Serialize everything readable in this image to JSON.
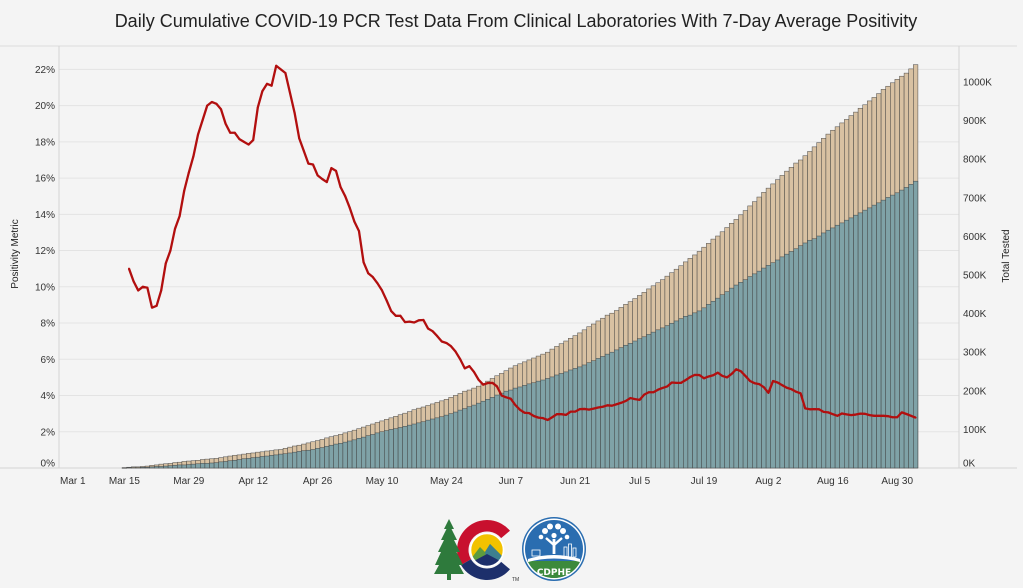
{
  "chart_data": {
    "type": "bar",
    "overlay_type": "line",
    "title": "Daily Cumulative COVID-19 PCR Test Data From Clinical Laboratories With 7-Day Average Positivity",
    "xlabel": "",
    "ylabel_left": "Positivity Metric",
    "ylabel_right": "Total Tested",
    "ylim_left": [
      0,
      23.3
    ],
    "ylim_right_thousands": [
      0,
      1093
    ],
    "grid": true,
    "legend": "none",
    "x_tick_labels": [
      "Mar 1",
      "Mar 15",
      "Mar 29",
      "Apr 12",
      "Apr 26",
      "May 10",
      "May 24",
      "Jun 7",
      "Jun 21",
      "Jul 5",
      "Jul 19",
      "Aug 2",
      "Aug 16",
      "Aug 30"
    ],
    "y_left_tick_values": [
      0,
      2,
      4,
      6,
      8,
      10,
      12,
      14,
      16,
      18,
      20,
      22
    ],
    "y_left_tick_labels": [
      "0%",
      "2%",
      "4%",
      "6%",
      "8%",
      "10%",
      "12%",
      "14%",
      "16%",
      "18%",
      "20%",
      "22%"
    ],
    "y_right_tick_values": [
      0,
      100,
      200,
      300,
      400,
      500,
      600,
      700,
      800,
      900,
      1000
    ],
    "y_right_tick_labels": [
      "0K",
      "100K",
      "200K",
      "300K",
      "400K",
      "500K",
      "600K",
      "700K",
      "800K",
      "900K",
      "1000K"
    ],
    "dates": [
      "Mar 15",
      "Mar 16",
      "Mar 17",
      "Mar 18",
      "Mar 19",
      "Mar 20",
      "Mar 21",
      "Mar 22",
      "Mar 23",
      "Mar 24",
      "Mar 25",
      "Mar 26",
      "Mar 27",
      "Mar 28",
      "Mar 29",
      "Mar 30",
      "Mar 31",
      "Apr 1",
      "Apr 2",
      "Apr 3",
      "Apr 4",
      "Apr 5",
      "Apr 6",
      "Apr 7",
      "Apr 8",
      "Apr 9",
      "Apr 10",
      "Apr 11",
      "Apr 12",
      "Apr 13",
      "Apr 14",
      "Apr 15",
      "Apr 16",
      "Apr 17",
      "Apr 18",
      "Apr 19",
      "Apr 20",
      "Apr 21",
      "Apr 22",
      "Apr 23",
      "Apr 24",
      "Apr 25",
      "Apr 26",
      "Apr 27",
      "Apr 28",
      "Apr 29",
      "Apr 30",
      "May 1",
      "May 2",
      "May 3",
      "May 4",
      "May 5",
      "May 6",
      "May 7",
      "May 8",
      "May 9",
      "May 10",
      "May 11",
      "May 12",
      "May 13",
      "May 14",
      "May 15",
      "May 16",
      "May 17",
      "May 18",
      "May 19",
      "May 20",
      "May 21",
      "May 22",
      "May 23",
      "May 24",
      "May 25",
      "May 26",
      "May 27",
      "May 28",
      "May 29",
      "May 30",
      "May 31",
      "Jun 1",
      "Jun 2",
      "Jun 3",
      "Jun 4",
      "Jun 5",
      "Jun 6",
      "Jun 7",
      "Jun 8",
      "Jun 9",
      "Jun 10",
      "Jun 11",
      "Jun 12",
      "Jun 13",
      "Jun 14",
      "Jun 15",
      "Jun 16",
      "Jun 17",
      "Jun 18",
      "Jun 19",
      "Jun 20",
      "Jun 21",
      "Jun 22",
      "Jun 23",
      "Jun 24",
      "Jun 25",
      "Jun 26",
      "Jun 27",
      "Jun 28",
      "Jun 29",
      "Jun 30",
      "Jul 1",
      "Jul 2",
      "Jul 3",
      "Jul 4",
      "Jul 5",
      "Jul 6",
      "Jul 7",
      "Jul 8",
      "Jul 9",
      "Jul 10",
      "Jul 11",
      "Jul 12",
      "Jul 13",
      "Jul 14",
      "Jul 15",
      "Jul 16",
      "Jul 17",
      "Jul 18",
      "Jul 19",
      "Jul 20",
      "Jul 21",
      "Jul 22",
      "Jul 23",
      "Jul 24",
      "Jul 25",
      "Jul 26",
      "Jul 27",
      "Jul 28",
      "Jul 29",
      "Jul 30",
      "Jul 31",
      "Aug 1",
      "Aug 2",
      "Aug 3",
      "Aug 4",
      "Aug 5",
      "Aug 6",
      "Aug 7",
      "Aug 8",
      "Aug 9",
      "Aug 10",
      "Aug 11",
      "Aug 12",
      "Aug 13",
      "Aug 14",
      "Aug 15",
      "Aug 16",
      "Aug 17",
      "Aug 18",
      "Aug 19",
      "Aug 20",
      "Aug 21",
      "Aug 22",
      "Aug 23",
      "Aug 24",
      "Aug 25",
      "Aug 26",
      "Aug 27",
      "Aug 28",
      "Aug 29",
      "Aug 30",
      "Aug 31",
      "Sep 1",
      "Sep 2",
      "Sep 3"
    ],
    "series": [
      {
        "name": "tan bars (upper stack)",
        "kind": "bar",
        "axis": "right",
        "unit": "thousands tested",
        "color": "#d8c1a2",
        "values": [
          1,
          2,
          3,
          3,
          4,
          5,
          7,
          8,
          10,
          11,
          12,
          14,
          15,
          17,
          18,
          19,
          20,
          22,
          23,
          24,
          25,
          27,
          29,
          31,
          33,
          34,
          36,
          38,
          39,
          41,
          42,
          44,
          45,
          47,
          48,
          51,
          54,
          57,
          59,
          62,
          65,
          68,
          71,
          74,
          78,
          81,
          84,
          87,
          91,
          94,
          98,
          102,
          106,
          110,
          114,
          118,
          122,
          126,
          130,
          134,
          138,
          142,
          146,
          151,
          155,
          158,
          162,
          166,
          170,
          174,
          178,
          183,
          188,
          193,
          199,
          202,
          207,
          212,
          219,
          225,
          232,
          239,
          245,
          252,
          259,
          265,
          270,
          275,
          280,
          285,
          290,
          295,
          300,
          308,
          315,
          322,
          329,
          336,
          343,
          350,
          358,
          366,
          373,
          381,
          388,
          396,
          401,
          408,
          416,
          424,
          431,
          439,
          447,
          455,
          464,
          472,
          480,
          488,
          497,
          506,
          515,
          524,
          534,
          543,
          552,
          561,
          572,
          582,
          593,
          601,
          612,
          623,
          634,
          644,
          656,
          667,
          679,
          690,
          702,
          714,
          725,
          736,
          747,
          758,
          769,
          779,
          790,
          798,
          809,
          820,
          832,
          843,
          854,
          865,
          875,
          884,
          894,
          903,
          913,
          922,
          932,
          941,
          951,
          960,
          970,
          981,
          989,
          998,
          1007,
          1015,
          1023,
          1034,
          1045
        ]
      },
      {
        "name": "teal bars (lower stack)",
        "kind": "bar",
        "axis": "right",
        "unit": "thousands tested",
        "color": "#7fa2a7",
        "values": [
          0,
          1,
          1,
          1,
          2,
          2,
          3,
          4,
          4,
          5,
          6,
          7,
          8,
          8,
          9,
          10,
          11,
          12,
          12,
          13,
          14,
          16,
          17,
          19,
          20,
          22,
          24,
          25,
          27,
          28,
          30,
          31,
          33,
          34,
          36,
          37,
          39,
          41,
          43,
          45,
          46,
          48,
          51,
          53,
          56,
          59,
          62,
          64,
          67,
          70,
          73,
          77,
          80,
          84,
          87,
          91,
          94,
          97,
          100,
          102,
          105,
          108,
          111,
          114,
          117,
          120,
          124,
          127,
          130,
          133,
          137,
          141,
          145,
          150,
          154,
          159,
          163,
          168,
          173,
          178,
          183,
          189,
          194,
          199,
          202,
          207,
          210,
          214,
          218,
          221,
          225,
          228,
          232,
          236,
          241,
          245,
          249,
          254,
          258,
          262,
          267,
          273,
          278,
          284,
          289,
          295,
          300,
          306,
          312,
          318,
          323,
          329,
          335,
          340,
          346,
          352,
          358,
          363,
          369,
          375,
          381,
          387,
          393,
          396,
          402,
          407,
          415,
          424,
          432,
          440,
          449,
          457,
          466,
          474,
          481,
          488,
          496,
          503,
          510,
          518,
          525,
          532,
          539,
          547,
          554,
          561,
          568,
          576,
          583,
          590,
          594,
          601,
          609,
          616,
          622,
          629,
          635,
          642,
          648,
          655,
          661,
          668,
          674,
          681,
          687,
          694,
          701,
          707,
          713,
          720,
          727,
          735,
          743
        ]
      },
      {
        "name": "7-Day Average Positivity",
        "kind": "line",
        "axis": "left",
        "unit": "%",
        "color": "#b20f0f",
        "values": [
          null,
          11.0,
          10.3,
          9.8,
          10.0,
          9.95,
          8.85,
          8.95,
          9.8,
          11.3,
          12.0,
          13.2,
          13.9,
          15.3,
          16.3,
          17.2,
          18.4,
          19.2,
          20.0,
          20.2,
          20.1,
          19.8,
          19.0,
          18.5,
          18.5,
          18.15,
          18.0,
          17.85,
          18.1,
          19.9,
          20.8,
          21.2,
          21.1,
          22.2,
          22.0,
          21.8,
          20.7,
          19.6,
          18.2,
          17.5,
          16.8,
          16.75,
          16.15,
          15.95,
          15.78,
          16.55,
          16.4,
          15.5,
          15.0,
          14.35,
          13.6,
          13.07,
          11.35,
          10.75,
          10.54,
          10.2,
          9.8,
          9.25,
          8.66,
          8.4,
          8.4,
          8.05,
          8.08,
          8.03,
          8.15,
          8.17,
          7.7,
          7.55,
          7.28,
          6.98,
          6.9,
          6.72,
          6.42,
          6.0,
          5.5,
          5.62,
          5.3,
          4.87,
          4.6,
          4.69,
          4.7,
          4.5,
          4.0,
          3.9,
          3.82,
          3.47,
          3.21,
          3.05,
          3.03,
          2.87,
          2.78,
          2.75,
          2.65,
          2.8,
          2.97,
          2.97,
          2.93,
          3.11,
          3.11,
          3.25,
          3.26,
          3.22,
          3.28,
          3.34,
          3.38,
          3.46,
          3.44,
          3.52,
          3.6,
          3.7,
          3.86,
          3.8,
          3.76,
          4.05,
          4.18,
          4.18,
          4.32,
          4.42,
          4.5,
          4.72,
          4.7,
          4.7,
          4.85,
          5.02,
          5.14,
          5.13,
          4.95,
          5.05,
          5.12,
          5.26,
          5.08,
          5.0,
          5.19,
          5.45,
          5.34,
          5.08,
          4.8,
          4.68,
          4.63,
          4.46,
          4.15,
          4.8,
          4.72,
          4.57,
          4.43,
          4.35,
          4.21,
          4.12,
          3.29,
          3.24,
          3.25,
          3.24,
          3.1,
          3.07,
          2.97,
          2.88,
          3.01,
          2.96,
          2.92,
          2.95,
          3.0,
          2.99,
          2.92,
          2.88,
          2.88,
          2.88,
          2.86,
          2.8,
          2.8,
          3.07,
          2.98,
          2.88,
          2.78
        ]
      }
    ]
  },
  "logos": {
    "colorado_icon": "colorado-state-logo",
    "cdphe_icon": "cdphe-logo",
    "cdphe_text": "CDPHE",
    "trademark": "TM"
  }
}
